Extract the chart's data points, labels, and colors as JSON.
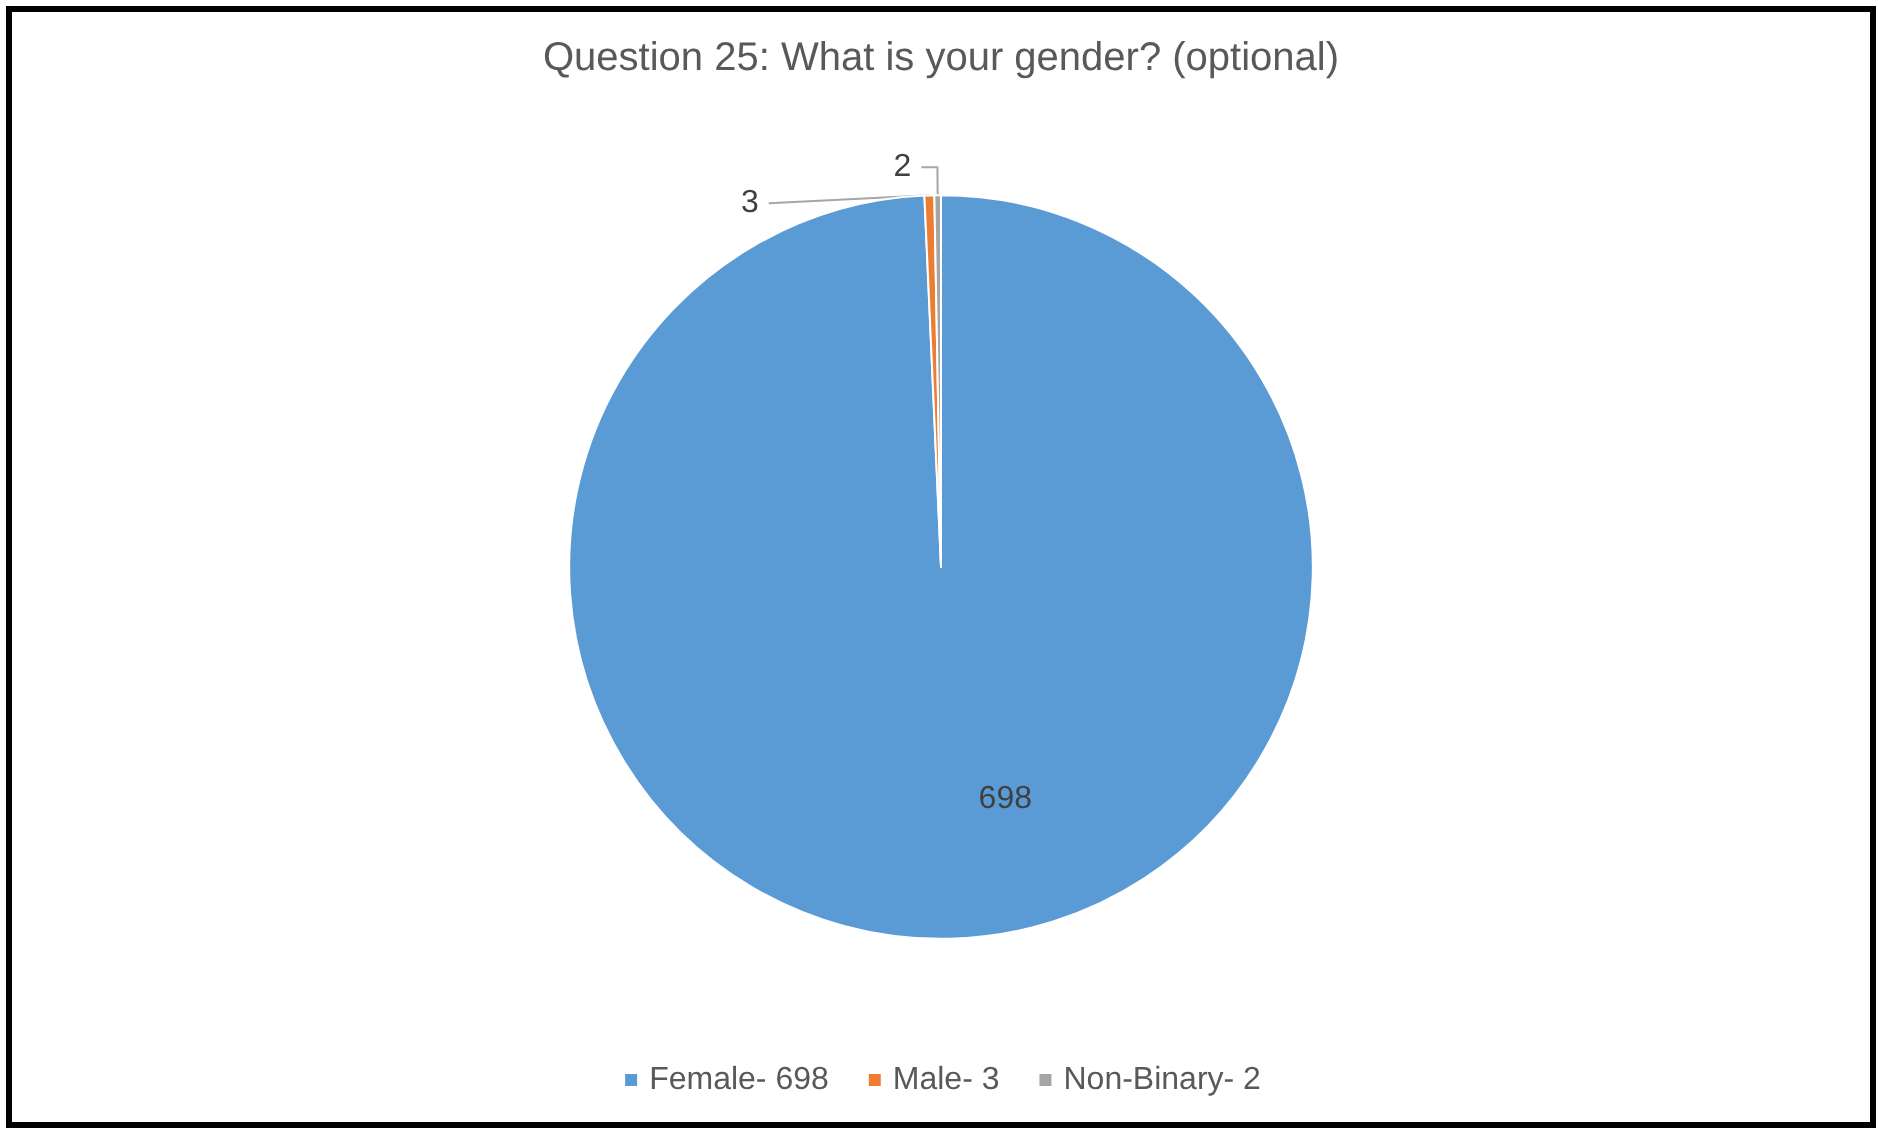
{
  "chart_data": {
    "type": "pie",
    "title": "Question 25: What is your gender? (optional)",
    "categories": [
      "Female- 698",
      "Male- 3",
      "Non-Binary- 2"
    ],
    "values": [
      698,
      3,
      2
    ],
    "colors": [
      "#5b9bd5",
      "#ed7d31",
      "#a5a5a5"
    ],
    "data_labels": true,
    "legend": "bottom"
  }
}
